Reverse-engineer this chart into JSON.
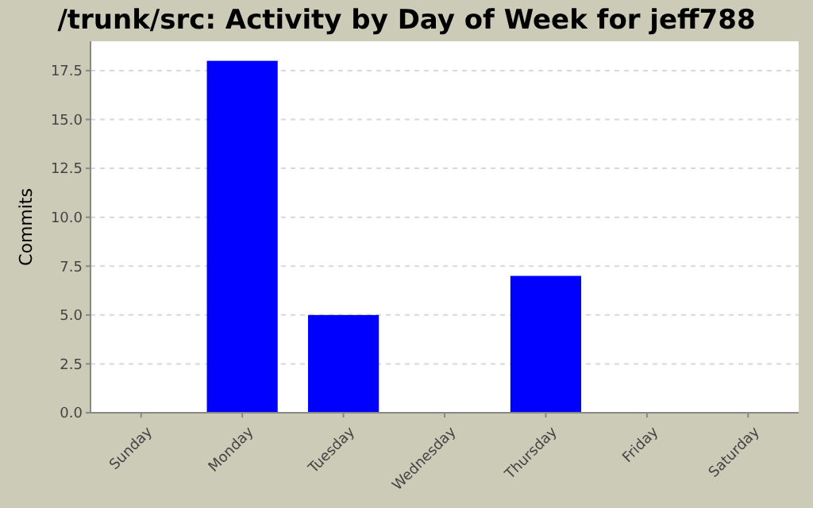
{
  "chart_data": {
    "type": "bar",
    "title": "/trunk/src: Activity by Day of Week for jeff788",
    "ylabel": "Commits",
    "categories": [
      "Sunday",
      "Monday",
      "Tuesday",
      "Wednesday",
      "Thursday",
      "Friday",
      "Saturday"
    ],
    "values": [
      0,
      18,
      5,
      0,
      7,
      0,
      0
    ],
    "color": "#0000ff",
    "ylim": [
      0,
      19
    ],
    "yticks": [
      {
        "value": 0,
        "label": "0.0"
      },
      {
        "value": 2.5,
        "label": "2.5"
      },
      {
        "value": 5,
        "label": "5.0"
      },
      {
        "value": 7.5,
        "label": "7.5"
      },
      {
        "value": 10,
        "label": "10.0"
      },
      {
        "value": 12.5,
        "label": "12.5"
      },
      {
        "value": 15,
        "label": "15.0"
      },
      {
        "value": 17.5,
        "label": "17.5"
      }
    ],
    "grid": "y"
  }
}
